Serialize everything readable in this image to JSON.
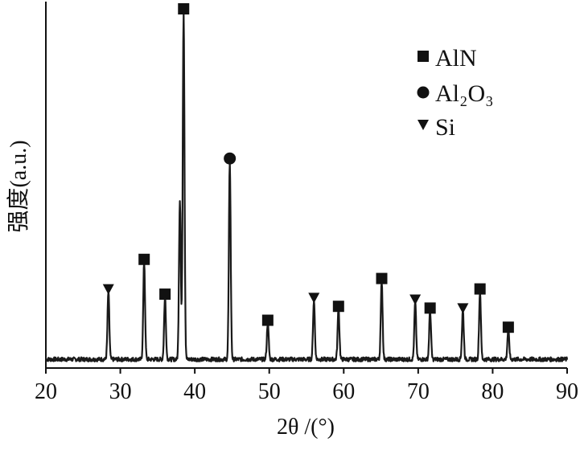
{
  "chart_data": {
    "type": "line",
    "title": "",
    "xlabel": "2θ /(°)",
    "ylabel": "强度(a.u.)",
    "xlim": [
      20,
      90
    ],
    "xticks": [
      20,
      30,
      40,
      50,
      60,
      70,
      80,
      90
    ],
    "xtick_labels": [
      "20",
      "30",
      "40",
      "50",
      "60",
      "70",
      "80",
      "90"
    ],
    "ylim": [
      0,
      100
    ],
    "y_ticks_shown": false,
    "grid": false,
    "legend_position": "top-right",
    "line_color": "#1a1a1a",
    "baseline": 2.5,
    "peaks": [
      {
        "x": 28.4,
        "y": 19.5,
        "phase": "Si"
      },
      {
        "x": 33.2,
        "y": 28.0,
        "phase": "AlN"
      },
      {
        "x": 36.0,
        "y": 18.0,
        "phase": "AlN"
      },
      {
        "x": 38.0,
        "y": 46.0,
        "phase": ""
      },
      {
        "x": 38.5,
        "y": 100.0,
        "phase": "AlN"
      },
      {
        "x": 44.7,
        "y": 57.0,
        "phase": "Al2O3"
      },
      {
        "x": 49.8,
        "y": 10.5,
        "phase": "AlN"
      },
      {
        "x": 56.0,
        "y": 17.0,
        "phase": "Si"
      },
      {
        "x": 59.3,
        "y": 14.5,
        "phase": "AlN"
      },
      {
        "x": 65.1,
        "y": 22.5,
        "phase": "AlN"
      },
      {
        "x": 69.6,
        "y": 16.5,
        "phase": "Si"
      },
      {
        "x": 71.6,
        "y": 14.0,
        "phase": "AlN"
      },
      {
        "x": 76.0,
        "y": 14.0,
        "phase": "Si"
      },
      {
        "x": 78.3,
        "y": 19.5,
        "phase": "AlN"
      },
      {
        "x": 82.1,
        "y": 8.5,
        "phase": "AlN"
      }
    ],
    "legend": [
      {
        "marker": "square",
        "label": "AlN"
      },
      {
        "marker": "circle",
        "label": "Al₂O₃"
      },
      {
        "marker": "triangle-down",
        "label": "Si"
      }
    ]
  }
}
